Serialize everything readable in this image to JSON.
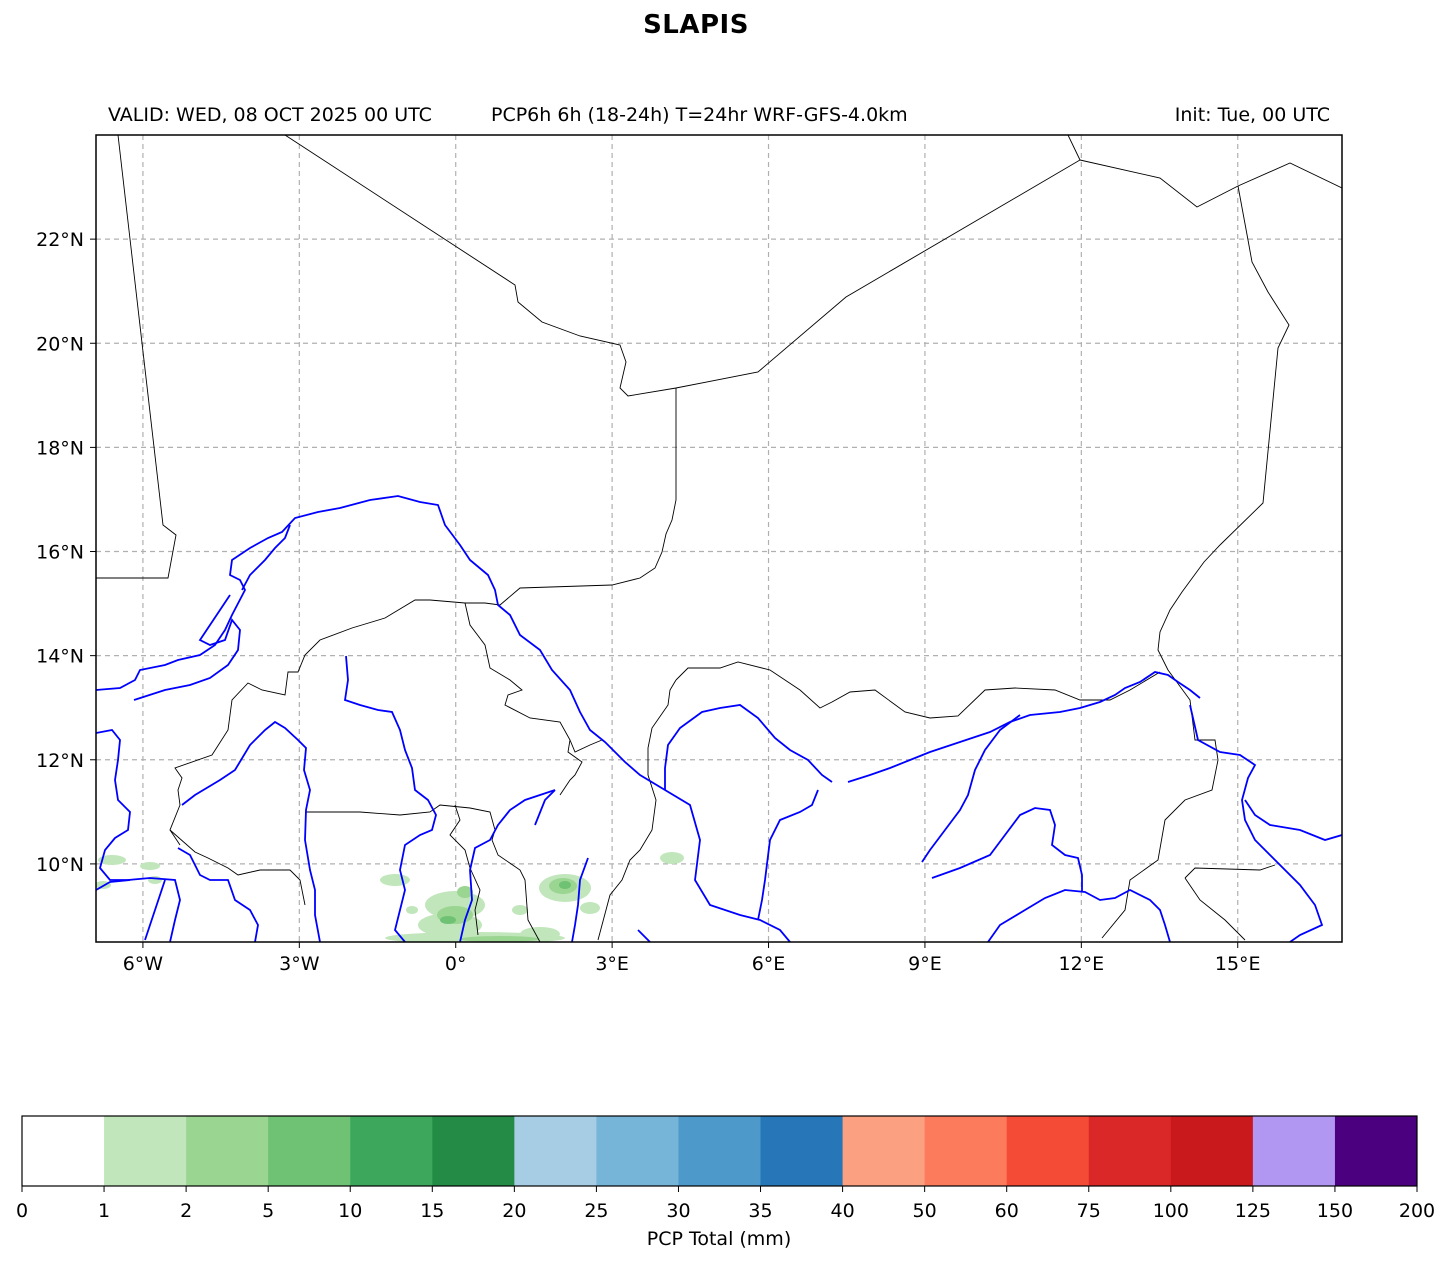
{
  "title": "SLAPIS",
  "subtitle": {
    "valid": "VALID: WED, 08 OCT 2025 00 UTC",
    "product": "PCP6h 6h (18-24h) T=24hr WRF-GFS-4.0km",
    "init": "Init: Tue, 00 UTC"
  },
  "map": {
    "lon_range": [
      -6.9,
      17.0
    ],
    "lat_range": [
      8.5,
      24.0
    ],
    "lon_ticks": [
      {
        "value": -6,
        "label": "6°W"
      },
      {
        "value": -3,
        "label": "3°W"
      },
      {
        "value": 0,
        "label": "0°"
      },
      {
        "value": 3,
        "label": "3°E"
      },
      {
        "value": 6,
        "label": "6°E"
      },
      {
        "value": 9,
        "label": "9°E"
      },
      {
        "value": 12,
        "label": "12°E"
      },
      {
        "value": 15,
        "label": "15°E"
      }
    ],
    "lat_ticks": [
      {
        "value": 22,
        "label": "22°N"
      },
      {
        "value": 20,
        "label": "20°N"
      },
      {
        "value": 18,
        "label": "18°N"
      },
      {
        "value": 16,
        "label": "16°N"
      },
      {
        "value": 14,
        "label": "14°N"
      },
      {
        "value": 12,
        "label": "12°N"
      },
      {
        "value": 10,
        "label": "10°N"
      }
    ],
    "grid": "dashed",
    "colors": {
      "border": "#000000",
      "river": "#0000ff",
      "grid": "#b0b0b0"
    }
  },
  "colorbar": {
    "label": "PCP Total (mm)",
    "bounds": [
      "0",
      "1",
      "2",
      "5",
      "10",
      "15",
      "20",
      "25",
      "30",
      "35",
      "40",
      "50",
      "60",
      "75",
      "100",
      "125",
      "150",
      "200"
    ],
    "colors": [
      "#ffffff",
      "#c1e6bb",
      "#9bd592",
      "#6fc173",
      "#3da85c",
      "#238b45",
      "#a6cde3",
      "#76b4d8",
      "#4c99ca",
      "#2776b7",
      "#fca082",
      "#fc7b5c",
      "#f44b37",
      "#da2727",
      "#c9191d",
      "#b197f2",
      "#4b0080"
    ]
  }
}
